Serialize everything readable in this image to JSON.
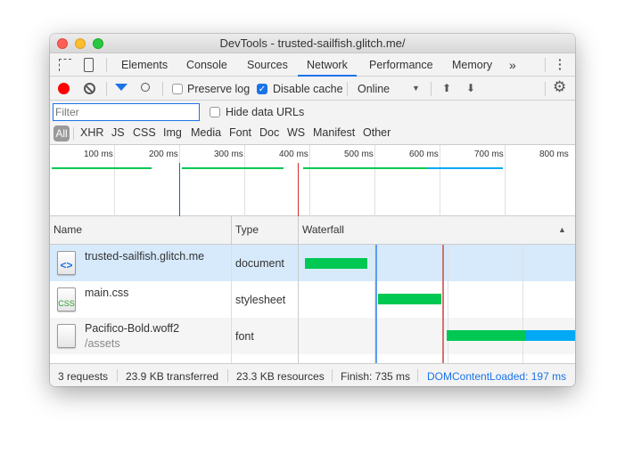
{
  "window": {
    "title": "DevTools - trusted-sailfish.glitch.me/"
  },
  "tabs": [
    {
      "label": "Elements"
    },
    {
      "label": "Console"
    },
    {
      "label": "Sources"
    },
    {
      "label": "Network",
      "active": true
    },
    {
      "label": "Performance"
    },
    {
      "label": "Memory"
    }
  ],
  "tabs_more": "»",
  "toolbar": {
    "preserve_log": "Preserve log",
    "preserve_log_checked": false,
    "disable_cache": "Disable cache",
    "disable_cache_checked": true,
    "throttle": "Online"
  },
  "filter": {
    "placeholder": "Filter",
    "value": "",
    "hide_data_urls": "Hide data URLs",
    "hide_data_urls_checked": false
  },
  "types": [
    "All",
    "XHR",
    "JS",
    "CSS",
    "Img",
    "Media",
    "Font",
    "Doc",
    "WS",
    "Manifest",
    "Other"
  ],
  "overview": {
    "ticks": [
      "100 ms",
      "200 ms",
      "300 ms",
      "400 ms",
      "500 ms",
      "600 ms",
      "700 ms",
      "800 ms"
    ]
  },
  "columns": {
    "name": "Name",
    "type": "Type",
    "waterfall": "Waterfall"
  },
  "requests": [
    {
      "name": "trusted-sailfish.glitch.me",
      "path": "",
      "type": "document",
      "icon": "html-file-icon",
      "selected": true
    },
    {
      "name": "main.css",
      "path": "",
      "type": "stylesheet",
      "icon": "css-file-icon",
      "icon_text": "CSS"
    },
    {
      "name": "Pacifico-Bold.woff2",
      "path": "/assets",
      "type": "font",
      "icon": "generic-file-icon"
    }
  ],
  "statusbar": {
    "requests": "3 requests",
    "transferred": "23.9 KB transferred",
    "resources": "23.3 KB resources",
    "finish": "Finish: 735 ms",
    "dcl": "DOMContentLoaded: 197 ms"
  },
  "colors": {
    "accent": "#1a73e8",
    "waiting": "#00c853",
    "download": "#03a9f4",
    "dcl_line": "#1565c0",
    "load_line": "#d32f2f",
    "selected_row": "#d6eafc"
  }
}
